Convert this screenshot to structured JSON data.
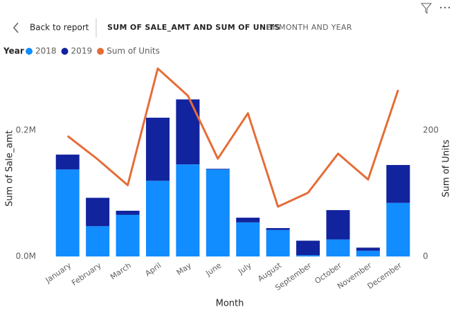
{
  "header": {
    "back": "Back to report",
    "title": "SUM OF SALE_AMT AND SUM OF UNITS",
    "subtitle": "BY MONTH AND YEAR"
  },
  "chart_data": {
    "type": "combo",
    "legend_title": "Year",
    "x_label": "Month",
    "y_label": "Sum of Sale_amt",
    "y2_label": "Sum of Units",
    "categories": [
      "January",
      "February",
      "March",
      "April",
      "May",
      "June",
      "July",
      "August",
      "September",
      "October",
      "November",
      "December"
    ],
    "series": [
      {
        "name": "2018",
        "type": "bar",
        "color": "#118DFF",
        "values": [
          138000,
          48000,
          66000,
          120000,
          146000,
          138000,
          54000,
          42000,
          2000,
          27000,
          9000,
          85000
        ]
      },
      {
        "name": "2019",
        "type": "bar",
        "color": "#12239E",
        "values": [
          23500,
          45000,
          6500,
          100000,
          103000,
          1000,
          7500,
          3000,
          23000,
          46500,
          5000,
          60000
        ]
      },
      {
        "name": "Sum of Units",
        "type": "line",
        "axis": "y2",
        "color": "#E66C37",
        "values": [
          191,
          154,
          113,
          298,
          255,
          155,
          227,
          79,
          101,
          163,
          122,
          264
        ]
      }
    ],
    "ylim": [
      0,
      300000
    ],
    "yticks": [
      {
        "value": 0,
        "label": "0.0M"
      },
      {
        "value": 200000,
        "label": "0.2M"
      }
    ],
    "y2lim": [
      0,
      300
    ],
    "y2ticks": [
      0,
      200
    ],
    "grid": false
  }
}
